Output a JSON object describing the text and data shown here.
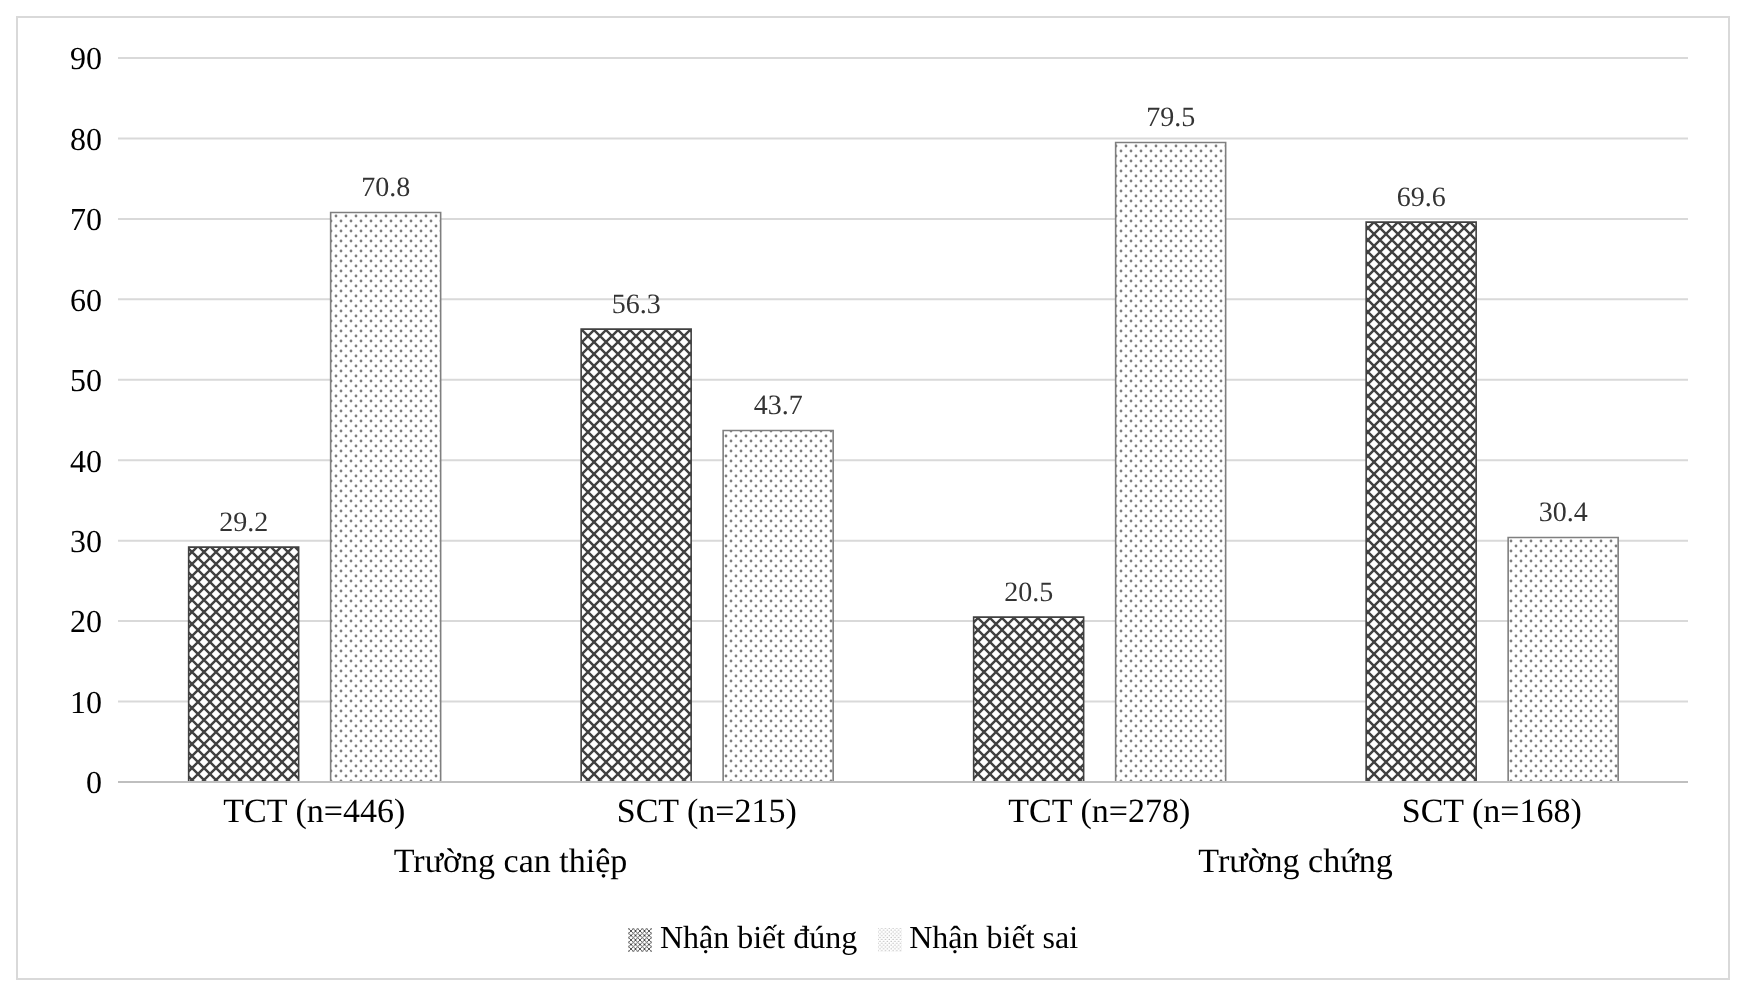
{
  "chart_data": {
    "type": "bar",
    "categories": [
      "TCT (n=446)",
      "SCT (n=215)",
      "TCT (n=278)",
      "SCT (n=168)"
    ],
    "series": [
      {
        "name": "Nhận biết đúng",
        "color": "#404040",
        "values": [
          29.2,
          56.3,
          20.5,
          69.6
        ]
      },
      {
        "name": "Nhận biết sai",
        "color": "#7f7f7f",
        "values": [
          70.8,
          43.7,
          79.5,
          30.4
        ]
      }
    ],
    "annotations": [
      "Trường can thiệp",
      "Trường chứng"
    ],
    "ylim": [
      0,
      90
    ],
    "yticks": [
      0,
      10,
      20,
      30,
      40,
      50,
      60,
      70,
      80,
      90
    ],
    "grid": "y",
    "legend": "bottom",
    "data_labels": true
  }
}
